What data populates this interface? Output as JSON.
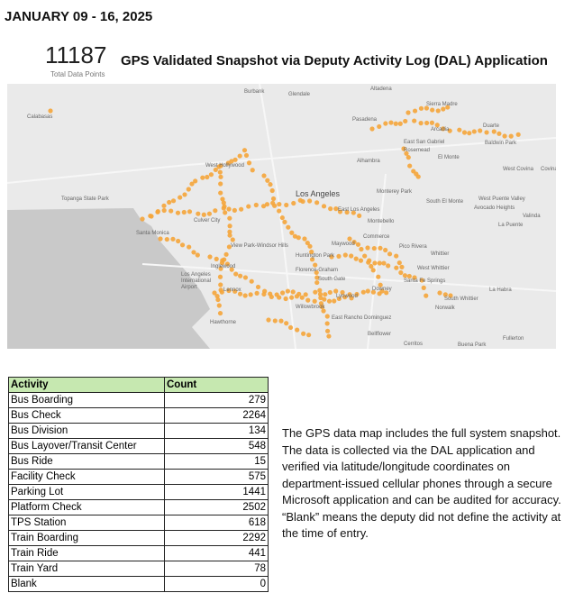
{
  "header": {
    "date_range": "JANUARY 09 - 16, 2025",
    "total_value": "11187",
    "total_label": "Total Data Points",
    "title": "GPS Validated Snapshot via Deputy Activity Log (DAL) Application"
  },
  "map": {
    "labels": [
      "Burbank",
      "Glendale",
      "Pasadena",
      "Altadena",
      "Sierra Madre",
      "Arcadia",
      "Duarte",
      "Calabasas",
      "Alhambra",
      "East San Gabriel",
      "Rosemead",
      "El Monte",
      "Baldwin Park",
      "West Covina",
      "Covina",
      "Monterey Park",
      "Los Angeles",
      "South El Monte",
      "West Puente Valley",
      "Avocado Heights",
      "Valinda",
      "La Puente",
      "West Hollywood",
      "Culver City",
      "East Los Angeles",
      "Montebello",
      "Santa Monica",
      "View Park-Windsor Hills",
      "Inglewood",
      "Maywood",
      "Huntington Park",
      "Commerce",
      "Pico Rivera",
      "Whittier",
      "West Whittier",
      "Los Angeles International Airport",
      "Lennox",
      "Florence-Graham",
      "South Gate",
      "Downey",
      "Santa Fe Springs",
      "Hawthorne",
      "Willowbrook",
      "Lynwood",
      "Norwalk",
      "South Whittier",
      "La Habra",
      "East Rancho Dominguez",
      "Bellflower",
      "Cerritos",
      "Buena Park",
      "Fullerton",
      "Topanga State Park"
    ],
    "dot_color": "#f5a53a"
  },
  "table": {
    "headers": [
      "Activity",
      "Count"
    ],
    "rows": [
      [
        "Bus Boarding",
        "279"
      ],
      [
        "Bus Check",
        "2264"
      ],
      [
        "Bus Division",
        "134"
      ],
      [
        "Bus Layover/Transit Center",
        "548"
      ],
      [
        "Bus Ride",
        "15"
      ],
      [
        "Facility Check",
        "575"
      ],
      [
        "Parking Lot",
        "1441"
      ],
      [
        "Platform Check",
        "2502"
      ],
      [
        "TPS Station",
        "618"
      ],
      [
        "Train Boarding",
        "2292"
      ],
      [
        "Train Ride",
        "441"
      ],
      [
        "Train Yard",
        "78"
      ],
      [
        "Blank",
        "0"
      ]
    ]
  },
  "note": "The GPS data map includes the full system snapshot. The data is collected via the DAL application and verified via latitude/longitude coordinates on department-issued cellular phones through a secure Microsoft application and can be audited for accuracy. “Blank” means the deputy did not define the activity at the time of entry."
}
